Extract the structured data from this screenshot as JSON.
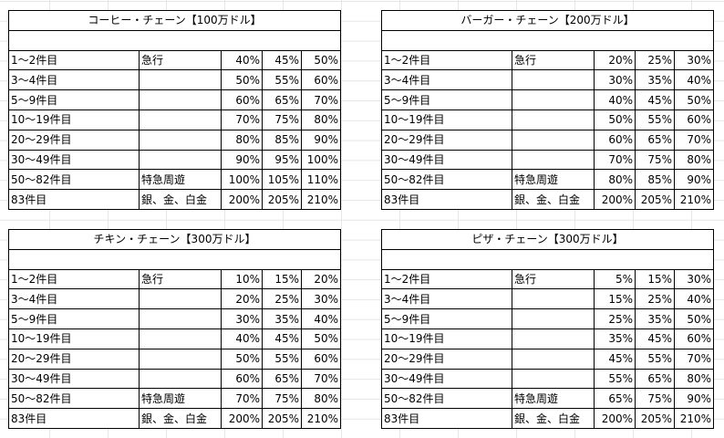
{
  "tables": [
    {
      "id": "coffee",
      "title": "コーヒー・チェーン【100万ドル】",
      "rows": [
        {
          "range": "1～2件目",
          "note": "急行",
          "v1": "40%",
          "v2": "45%",
          "v3": "50%"
        },
        {
          "range": "3～4件目",
          "note": "",
          "v1": "50%",
          "v2": "55%",
          "v3": "60%"
        },
        {
          "range": "5～9件目",
          "note": "",
          "v1": "60%",
          "v2": "65%",
          "v3": "70%"
        },
        {
          "range": "10～19件目",
          "note": "",
          "v1": "70%",
          "v2": "75%",
          "v3": "80%"
        },
        {
          "range": "20～29件目",
          "note": "",
          "v1": "80%",
          "v2": "85%",
          "v3": "90%"
        },
        {
          "range": "30～49件目",
          "note": "",
          "v1": "90%",
          "v2": "95%",
          "v3": "100%"
        },
        {
          "range": "50～82件目",
          "note": "特急周遊",
          "v1": "100%",
          "v2": "105%",
          "v3": "110%"
        },
        {
          "range": "83件目",
          "note": "銀、金、白金",
          "v1": "200%",
          "v2": "205%",
          "v3": "210%"
        }
      ]
    },
    {
      "id": "burger",
      "title": "バーガー・チェーン【200万ドル】",
      "rows": [
        {
          "range": "1～2件目",
          "note": "急行",
          "v1": "20%",
          "v2": "25%",
          "v3": "30%"
        },
        {
          "range": "3～4件目",
          "note": "",
          "v1": "30%",
          "v2": "35%",
          "v3": "40%"
        },
        {
          "range": "5～9件目",
          "note": "",
          "v1": "40%",
          "v2": "45%",
          "v3": "50%"
        },
        {
          "range": "10～19件目",
          "note": "",
          "v1": "50%",
          "v2": "55%",
          "v3": "60%"
        },
        {
          "range": "20～29件目",
          "note": "",
          "v1": "60%",
          "v2": "65%",
          "v3": "70%"
        },
        {
          "range": "30～49件目",
          "note": "",
          "v1": "70%",
          "v2": "75%",
          "v3": "80%"
        },
        {
          "range": "50～82件目",
          "note": "特急周遊",
          "v1": "80%",
          "v2": "85%",
          "v3": "90%"
        },
        {
          "range": "83件目",
          "note": "銀、金、白金",
          "v1": "200%",
          "v2": "205%",
          "v3": "210%"
        }
      ]
    },
    {
      "id": "chicken",
      "title": "チキン・チェーン【300万ドル】",
      "rows": [
        {
          "range": "1～2件目",
          "note": "急行",
          "v1": "10%",
          "v2": "15%",
          "v3": "20%"
        },
        {
          "range": "3～4件目",
          "note": "",
          "v1": "20%",
          "v2": "25%",
          "v3": "30%"
        },
        {
          "range": "5～9件目",
          "note": "",
          "v1": "30%",
          "v2": "35%",
          "v3": "40%"
        },
        {
          "range": "10～19件目",
          "note": "",
          "v1": "40%",
          "v2": "45%",
          "v3": "50%"
        },
        {
          "range": "20～29件目",
          "note": "",
          "v1": "50%",
          "v2": "55%",
          "v3": "60%"
        },
        {
          "range": "30～49件目",
          "note": "",
          "v1": "60%",
          "v2": "65%",
          "v3": "70%"
        },
        {
          "range": "50～82件目",
          "note": "特急周遊",
          "v1": "70%",
          "v2": "75%",
          "v3": "80%"
        },
        {
          "range": "83件目",
          "note": "銀、金、白金",
          "v1": "200%",
          "v2": "205%",
          "v3": "210%"
        }
      ]
    },
    {
      "id": "pizza",
      "title": "ピザ・チェーン【300万ドル】",
      "rows": [
        {
          "range": "1～2件目",
          "note": "急行",
          "v1": "5%",
          "v2": "15%",
          "v3": "30%"
        },
        {
          "range": "3～4件目",
          "note": "",
          "v1": "15%",
          "v2": "25%",
          "v3": "40%"
        },
        {
          "range": "5～9件目",
          "note": "",
          "v1": "25%",
          "v2": "35%",
          "v3": "50%"
        },
        {
          "range": "10～19件目",
          "note": "",
          "v1": "35%",
          "v2": "45%",
          "v3": "60%"
        },
        {
          "range": "20～29件目",
          "note": "",
          "v1": "45%",
          "v2": "55%",
          "v3": "70%"
        },
        {
          "range": "30～49件目",
          "note": "",
          "v1": "55%",
          "v2": "65%",
          "v3": "80%"
        },
        {
          "range": "50～82件目",
          "note": "特急周遊",
          "v1": "65%",
          "v2": "75%",
          "v3": "90%"
        },
        {
          "range": "83件目",
          "note": "銀、金、白金",
          "v1": "200%",
          "v2": "205%",
          "v3": "210%"
        }
      ]
    }
  ]
}
